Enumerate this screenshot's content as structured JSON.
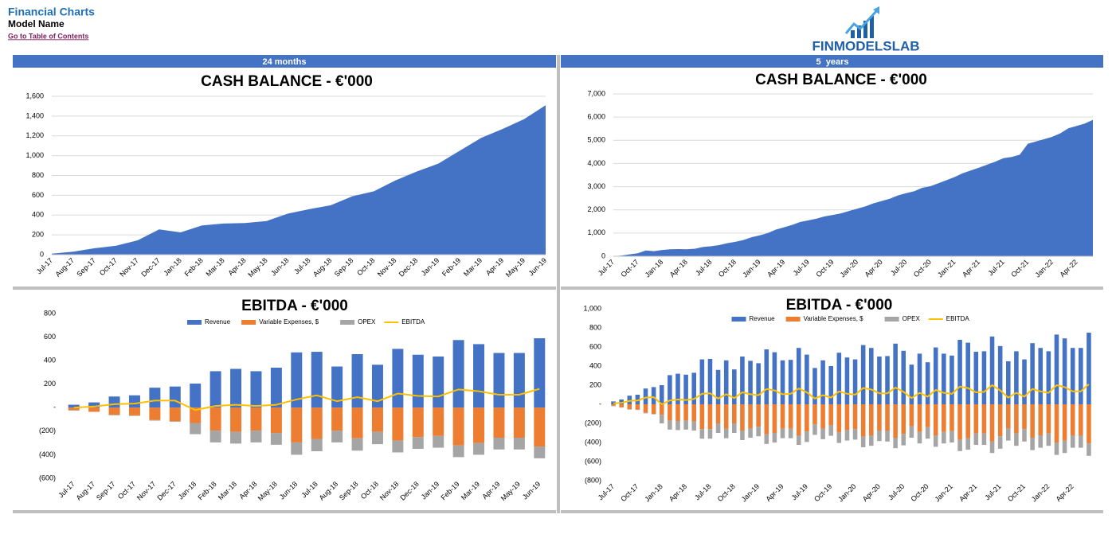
{
  "header": {
    "title": "Financial Charts",
    "model": "Model Name",
    "link": "Go to Table of Contents"
  },
  "logo": "FINMODELSLAB",
  "sections": [
    "24 months",
    "5  years"
  ],
  "chart_data": [
    {
      "type": "area",
      "title": "CASH BALANCE - €'000",
      "categories": [
        "Jul-17",
        "Aug-17",
        "Sep-17",
        "Oct-17",
        "Nov-17",
        "Dec-17",
        "Jan-18",
        "Feb-18",
        "Mar-18",
        "Apr-18",
        "May-18",
        "Jun-18",
        "Jul-18",
        "Aug-18",
        "Sep-18",
        "Oct-18",
        "Nov-18",
        "Dec-18",
        "Jan-19",
        "Feb-19",
        "Mar-19",
        "Apr-19",
        "May-19",
        "Jun-19"
      ],
      "values": [
        10,
        30,
        65,
        90,
        145,
        255,
        225,
        295,
        315,
        320,
        340,
        415,
        460,
        500,
        590,
        640,
        750,
        840,
        920,
        1050,
        1180,
        1270,
        1370,
        1510
      ],
      "color": "#4472c4",
      "ylim": [
        0,
        1600
      ],
      "yticks": [
        0,
        200,
        400,
        600,
        800,
        {
          "value": 1000,
          "label": "1,000"
        },
        {
          "value": 1200,
          "label": "1,200"
        },
        {
          "value": 1400,
          "label": "1,400"
        },
        {
          "value": 1600,
          "label": "1,600"
        }
      ],
      "grid": true
    },
    {
      "type": "area",
      "title": "CASH BALANCE - €'000",
      "categories": [
        "Jul-17",
        null,
        null,
        "Oct-17",
        null,
        null,
        "Jan-18",
        null,
        null,
        "Apr-18",
        null,
        null,
        "Jul-18",
        null,
        null,
        "Oct-18",
        null,
        null,
        "Jan-19",
        null,
        null,
        "Apr-19",
        null,
        null,
        "Jul-19",
        null,
        null,
        "Oct-19",
        null,
        null,
        "Jan-20",
        null,
        null,
        "Apr-20",
        null,
        null,
        "Jul-20",
        null,
        null,
        "Oct-20",
        null,
        null,
        "Jan-21",
        null,
        null,
        "Apr-21",
        null,
        null,
        "Jul-21",
        null,
        null,
        "Oct-21",
        null,
        null,
        "Jan-22",
        null,
        null,
        "Apr-22",
        null,
        null
      ],
      "values": [
        0,
        30,
        80,
        130,
        250,
        220,
        270,
        300,
        310,
        300,
        320,
        400,
        430,
        480,
        560,
        620,
        700,
        820,
        900,
        1000,
        1150,
        1250,
        1350,
        1480,
        1550,
        1620,
        1720,
        1780,
        1850,
        1950,
        2050,
        2150,
        2280,
        2380,
        2480,
        2620,
        2720,
        2800,
        2950,
        3020,
        3150,
        3280,
        3420,
        3580,
        3700,
        3820,
        3950,
        4080,
        4230,
        4280,
        4380,
        4850,
        4950,
        5050,
        5150,
        5300,
        5520,
        5620,
        5720,
        5880
      ],
      "color": "#4472c4",
      "ylim": [
        0,
        7000
      ],
      "yticks": [
        0,
        {
          "value": 1000,
          "label": "1,000"
        },
        {
          "value": 2000,
          "label": "2,000"
        },
        {
          "value": 3000,
          "label": "3,000"
        },
        {
          "value": 4000,
          "label": "4,000"
        },
        {
          "value": 5000,
          "label": "5,000"
        },
        {
          "value": 6000,
          "label": "6,000"
        },
        {
          "value": 7000,
          "label": "7,000"
        }
      ],
      "grid": true
    },
    {
      "type": "bar",
      "stacked": true,
      "title": "EBITDA - €'000",
      "categories": [
        "Jul-17",
        "Aug-17",
        "Sep-17",
        "Oct-17",
        "Nov-17",
        "Dec-17",
        "Jan-18",
        "Feb-18",
        "Mar-18",
        "Apr-18",
        "May-18",
        "Jun-18",
        "Jul-18",
        "Aug-18",
        "Sep-18",
        "Oct-18",
        "Nov-18",
        "Dec-18",
        "Jan-19",
        "Feb-19",
        "Mar-19",
        "Apr-19",
        "May-19",
        "Jun-19"
      ],
      "series": [
        {
          "name": "Revenue",
          "color": "#4472c4",
          "values": [
            25,
            45,
            95,
            105,
            170,
            180,
            205,
            310,
            330,
            310,
            340,
            470,
            475,
            350,
            455,
            365,
            500,
            450,
            435,
            575,
            540,
            465,
            465,
            590
          ]
        },
        {
          "name": "Variable Expenses, $",
          "color": "#ed7d31",
          "values": [
            -20,
            -35,
            -60,
            -65,
            -105,
            -115,
            -130,
            -195,
            -205,
            -195,
            -215,
            -295,
            -265,
            -195,
            -260,
            -205,
            -280,
            -250,
            -240,
            -320,
            -300,
            -255,
            -255,
            -330
          ]
        },
        {
          "name": "OPEX",
          "color": "#a5a5a5",
          "values": [
            -5,
            0,
            -5,
            -5,
            -5,
            -5,
            -95,
            -100,
            -100,
            -100,
            -100,
            -105,
            -105,
            -100,
            -105,
            -105,
            -100,
            -100,
            -100,
            -100,
            -100,
            -100,
            -100,
            -100
          ]
        },
        {
          "name": "EBITDA",
          "color": "#ffc000",
          "type": "line",
          "values": [
            0,
            10,
            30,
            35,
            60,
            60,
            -20,
            15,
            25,
            15,
            25,
            70,
            105,
            55,
            90,
            55,
            120,
            100,
            95,
            155,
            140,
            110,
            110,
            160
          ]
        }
      ],
      "ylim": [
        -600,
        800
      ],
      "yticks": [
        {
          "value": -600,
          "label": "(600)"
        },
        {
          "value": -400,
          "label": "(400)"
        },
        {
          "value": -200,
          "label": "(200)"
        },
        {
          "value": 0,
          "label": "-"
        },
        200,
        400,
        600,
        800
      ],
      "grid": false
    },
    {
      "type": "bar",
      "stacked": true,
      "title": "EBITDA - €'000",
      "categories": [
        "Jul-17",
        null,
        null,
        "Oct-17",
        null,
        null,
        "Jan-18",
        null,
        null,
        "Apr-18",
        null,
        null,
        "Jul-18",
        null,
        null,
        "Oct-18",
        null,
        null,
        "Jan-19",
        null,
        null,
        "Apr-19",
        null,
        null,
        "Jul-19",
        null,
        null,
        "Oct-19",
        null,
        null,
        "Jan-20",
        null,
        null,
        "Apr-20",
        null,
        null,
        "Jul-20",
        null,
        null,
        "Oct-20",
        null,
        null,
        "Jan-21",
        null,
        null,
        "Apr-21",
        null,
        null,
        "Jul-21",
        null,
        null,
        "Oct-21",
        null,
        null,
        "Jan-22",
        null,
        null,
        "Apr-22",
        null,
        null
      ],
      "series": [
        {
          "name": "Revenue",
          "color": "#4472c4",
          "values": [
            30,
            50,
            90,
            100,
            165,
            180,
            200,
            305,
            320,
            310,
            330,
            470,
            475,
            360,
            460,
            365,
            500,
            455,
            430,
            575,
            545,
            460,
            465,
            590,
            520,
            380,
            460,
            400,
            540,
            490,
            470,
            620,
            590,
            500,
            505,
            635,
            560,
            415,
            530,
            440,
            595,
            530,
            510,
            675,
            645,
            550,
            555,
            710,
            610,
            450,
            555,
            470,
            640,
            590,
            555,
            730,
            690,
            590,
            590,
            750
          ]
        },
        {
          "name": "Variable Expenses, $",
          "color": "#ed7d31",
          "values": [
            -15,
            -30,
            -50,
            -55,
            -90,
            -100,
            -110,
            -170,
            -175,
            -170,
            -180,
            -260,
            -260,
            -200,
            -255,
            -200,
            -275,
            -250,
            -235,
            -315,
            -300,
            -255,
            -255,
            -325,
            -285,
            -210,
            -255,
            -220,
            -295,
            -270,
            -260,
            -340,
            -325,
            -275,
            -280,
            -350,
            -310,
            -230,
            -290,
            -240,
            -325,
            -290,
            -280,
            -370,
            -355,
            -305,
            -305,
            -390,
            -335,
            -250,
            -305,
            -260,
            -350,
            -325,
            -305,
            -400,
            -380,
            -325,
            -325,
            -410
          ]
        },
        {
          "name": "OPEX",
          "color": "#a5a5a5",
          "values": [
            -5,
            -5,
            -5,
            -5,
            -5,
            -5,
            -90,
            -95,
            -95,
            -95,
            -95,
            -100,
            -100,
            -100,
            -100,
            -100,
            -100,
            -100,
            -100,
            -100,
            -100,
            -100,
            -100,
            -100,
            -110,
            -110,
            -110,
            -110,
            -110,
            -110,
            -110,
            -110,
            -110,
            -110,
            -110,
            -110,
            -120,
            -120,
            -120,
            -120,
            -120,
            -120,
            -120,
            -120,
            -120,
            -120,
            -120,
            -120,
            -130,
            -130,
            -130,
            -130,
            -130,
            -130,
            -130,
            -130,
            -130,
            -130,
            -130,
            -130
          ]
        },
        {
          "name": "EBITDA",
          "color": "#ffc000",
          "type": "line",
          "values": [
            10,
            15,
            35,
            40,
            70,
            75,
            0,
            40,
            50,
            45,
            55,
            110,
            115,
            60,
            105,
            65,
            125,
            105,
            95,
            160,
            145,
            105,
            110,
            165,
            125,
            60,
            95,
            70,
            135,
            110,
            100,
            170,
            155,
            115,
            115,
            175,
            130,
            65,
            120,
            80,
            150,
            120,
            110,
            185,
            170,
            125,
            130,
            200,
            145,
            70,
            120,
            80,
            160,
            135,
            120,
            200,
            180,
            135,
            135,
            210
          ]
        }
      ],
      "ylim": [
        -800,
        1000
      ],
      "yticks": [
        {
          "value": -800,
          "label": "(800)"
        },
        {
          "value": -600,
          "label": "(600)"
        },
        {
          "value": -400,
          "label": "(400)"
        },
        {
          "value": -200,
          "label": "(200)"
        },
        {
          "value": 0,
          "label": "-"
        },
        200,
        400,
        600,
        800,
        {
          "value": 1000,
          "label": "1,000"
        }
      ],
      "grid": false
    }
  ]
}
